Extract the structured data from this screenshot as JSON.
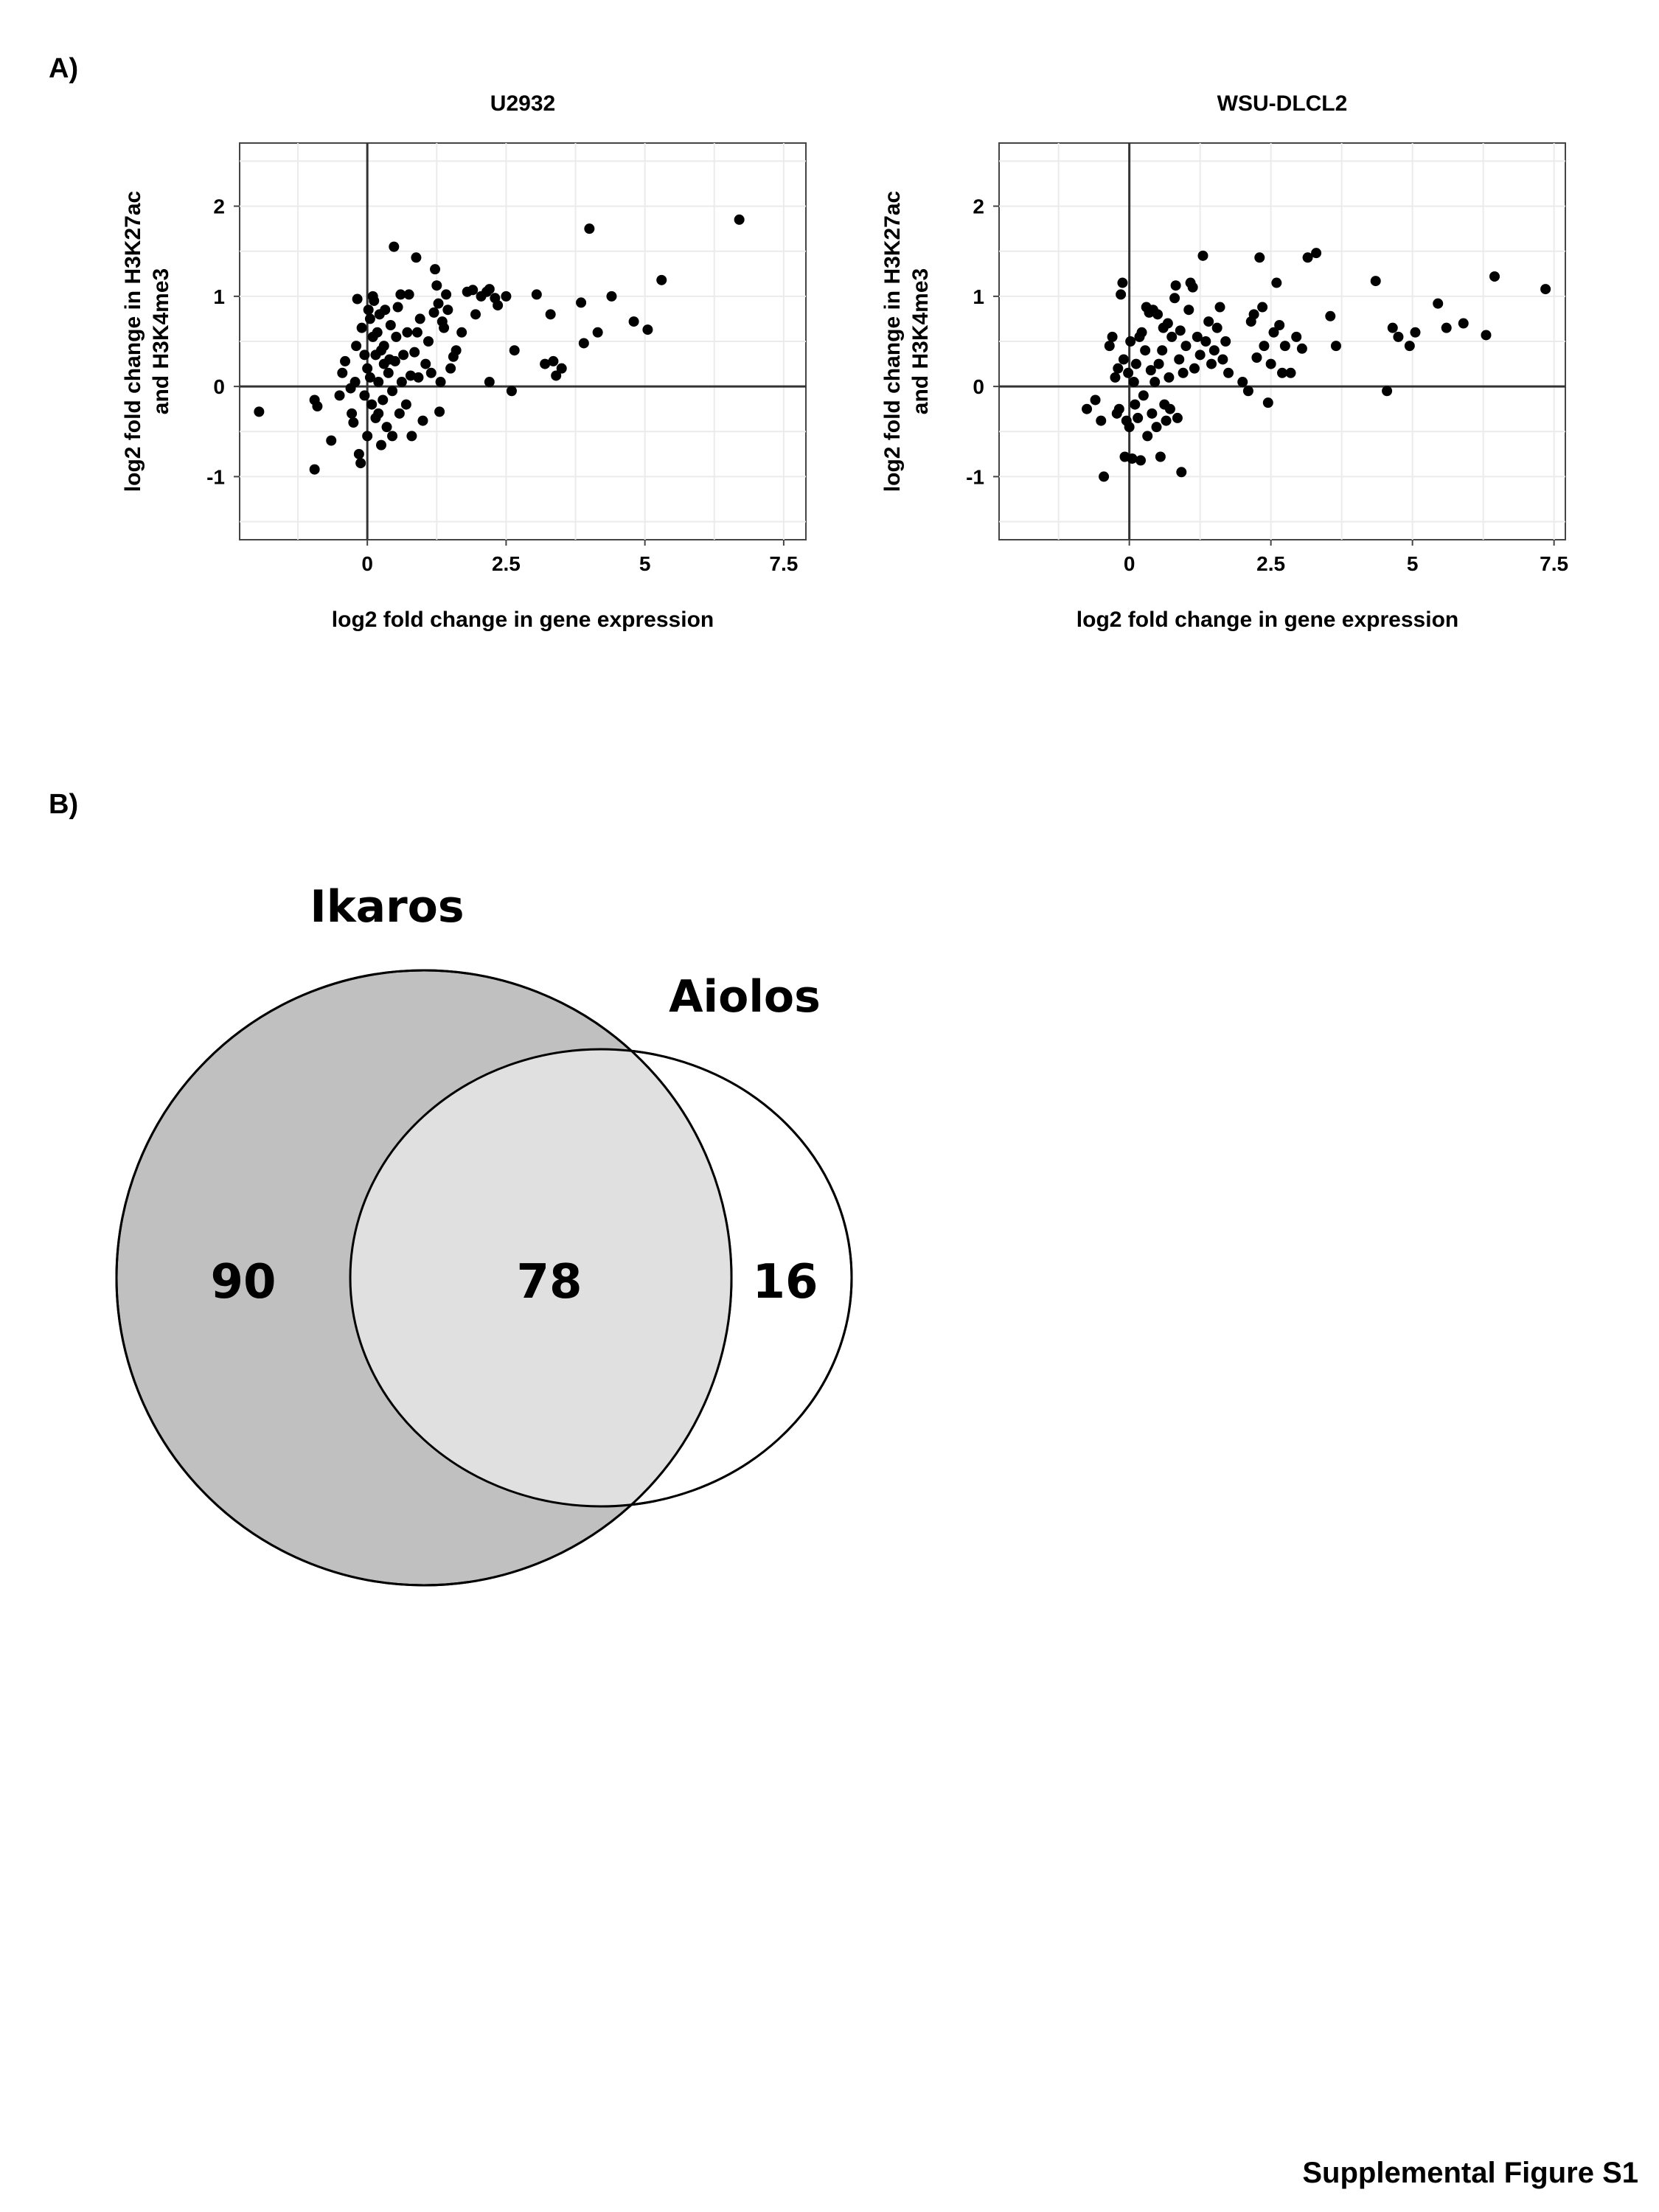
{
  "panels": {
    "a_label": "A)",
    "b_label": "B)"
  },
  "footer": "Supplemental Figure S1",
  "chart_data": [
    {
      "type": "scatter",
      "title": "U2932",
      "xlabel": "log2 fold change in gene expression",
      "ylabel_line1": "log2 fold change in H3K27ac",
      "ylabel_line2": "and H3K4me3",
      "xlim": [
        -2.3,
        7.9
      ],
      "ylim": [
        -1.7,
        2.7
      ],
      "xticks": [
        0,
        2.5,
        5,
        7.5
      ],
      "xtick_labels": [
        "0",
        "2.5",
        "5",
        "7.5"
      ],
      "yticks": [
        -1,
        0,
        1,
        2
      ],
      "ytick_labels": [
        "-1",
        "0",
        "1",
        "2"
      ],
      "grid": true,
      "points": [
        [
          -1.95,
          -0.28
        ],
        [
          -0.95,
          -0.15
        ],
        [
          -0.9,
          -0.22
        ],
        [
          -0.95,
          -0.92
        ],
        [
          -0.65,
          -0.6
        ],
        [
          -0.5,
          -0.1
        ],
        [
          -0.45,
          0.15
        ],
        [
          -0.4,
          0.28
        ],
        [
          -0.3,
          -0.02
        ],
        [
          -0.28,
          -0.3
        ],
        [
          -0.25,
          -0.4
        ],
        [
          -0.22,
          0.05
        ],
        [
          -0.2,
          0.45
        ],
        [
          -0.18,
          0.97
        ],
        [
          -0.15,
          -0.75
        ],
        [
          -0.12,
          -0.85
        ],
        [
          -0.1,
          0.65
        ],
        [
          -0.05,
          0.35
        ],
        [
          -0.05,
          -0.1
        ],
        [
          0.0,
          0.2
        ],
        [
          0.0,
          -0.55
        ],
        [
          0.02,
          0.85
        ],
        [
          0.05,
          0.75
        ],
        [
          0.05,
          0.1
        ],
        [
          0.08,
          -0.2
        ],
        [
          0.1,
          0.55
        ],
        [
          0.1,
          1.0
        ],
        [
          0.12,
          0.95
        ],
        [
          0.15,
          -0.35
        ],
        [
          0.15,
          0.35
        ],
        [
          0.18,
          0.6
        ],
        [
          0.2,
          0.05
        ],
        [
          0.2,
          -0.3
        ],
        [
          0.22,
          0.8
        ],
        [
          0.25,
          0.4
        ],
        [
          0.25,
          -0.65
        ],
        [
          0.28,
          -0.15
        ],
        [
          0.3,
          0.25
        ],
        [
          0.3,
          0.45
        ],
        [
          0.32,
          0.85
        ],
        [
          0.35,
          -0.45
        ],
        [
          0.38,
          0.15
        ],
        [
          0.4,
          0.3
        ],
        [
          0.42,
          0.68
        ],
        [
          0.45,
          -0.05
        ],
        [
          0.45,
          -0.55
        ],
        [
          0.48,
          1.55
        ],
        [
          0.5,
          0.28
        ],
        [
          0.52,
          0.55
        ],
        [
          0.55,
          0.88
        ],
        [
          0.58,
          -0.3
        ],
        [
          0.6,
          1.02
        ],
        [
          0.62,
          0.05
        ],
        [
          0.65,
          0.35
        ],
        [
          0.7,
          -0.2
        ],
        [
          0.72,
          0.6
        ],
        [
          0.75,
          1.02
        ],
        [
          0.78,
          0.12
        ],
        [
          0.8,
          -0.55
        ],
        [
          0.85,
          0.38
        ],
        [
          0.88,
          1.43
        ],
        [
          0.9,
          0.6
        ],
        [
          0.92,
          0.1
        ],
        [
          0.95,
          0.75
        ],
        [
          1.0,
          -0.38
        ],
        [
          1.05,
          0.25
        ],
        [
          1.1,
          0.5
        ],
        [
          1.15,
          0.15
        ],
        [
          1.2,
          0.82
        ],
        [
          1.22,
          1.3
        ],
        [
          1.25,
          1.12
        ],
        [
          1.28,
          0.92
        ],
        [
          1.3,
          -0.28
        ],
        [
          1.32,
          0.05
        ],
        [
          1.35,
          0.72
        ],
        [
          1.38,
          0.65
        ],
        [
          1.42,
          1.02
        ],
        [
          1.45,
          0.85
        ],
        [
          1.5,
          0.2
        ],
        [
          1.55,
          0.33
        ],
        [
          1.6,
          0.4
        ],
        [
          1.7,
          0.6
        ],
        [
          1.8,
          1.05
        ],
        [
          1.9,
          1.07
        ],
        [
          1.95,
          0.8
        ],
        [
          2.05,
          1.0
        ],
        [
          2.15,
          1.05
        ],
        [
          2.2,
          1.08
        ],
        [
          2.3,
          0.98
        ],
        [
          2.35,
          0.9
        ],
        [
          2.2,
          0.05
        ],
        [
          2.6,
          -0.05
        ],
        [
          2.65,
          0.4
        ],
        [
          2.5,
          1.0
        ],
        [
          3.05,
          1.02
        ],
        [
          3.2,
          0.25
        ],
        [
          3.3,
          0.8
        ],
        [
          3.35,
          0.28
        ],
        [
          3.4,
          0.12
        ],
        [
          3.5,
          0.2
        ],
        [
          3.85,
          0.93
        ],
        [
          3.9,
          0.48
        ],
        [
          4.0,
          1.75
        ],
        [
          4.15,
          0.6
        ],
        [
          4.4,
          1.0
        ],
        [
          4.8,
          0.72
        ],
        [
          5.05,
          0.63
        ],
        [
          5.3,
          1.18
        ],
        [
          6.7,
          1.85
        ]
      ]
    },
    {
      "type": "scatter",
      "title": "WSU-DLCL2",
      "xlabel": "log2 fold change in gene expression",
      "ylabel_line1": "log2 fold change in H3K27ac",
      "ylabel_line2": "and H3K4me3",
      "xlim": [
        -2.3,
        7.7
      ],
      "ylim": [
        -1.7,
        2.7
      ],
      "xticks": [
        0,
        2.5,
        5,
        7.5
      ],
      "xtick_labels": [
        "0",
        "2.5",
        "5",
        "7.5"
      ],
      "yticks": [
        -1,
        0,
        1,
        2
      ],
      "ytick_labels": [
        "-1",
        "0",
        "1",
        "2"
      ],
      "grid": true,
      "points": [
        [
          -0.75,
          -0.25
        ],
        [
          -0.6,
          -0.15
        ],
        [
          -0.5,
          -0.38
        ],
        [
          -0.45,
          -1.0
        ],
        [
          -0.35,
          0.45
        ],
        [
          -0.3,
          0.55
        ],
        [
          -0.25,
          0.1
        ],
        [
          -0.22,
          -0.3
        ],
        [
          -0.2,
          0.2
        ],
        [
          -0.18,
          -0.25
        ],
        [
          -0.15,
          1.02
        ],
        [
          -0.12,
          1.15
        ],
        [
          -0.1,
          0.3
        ],
        [
          -0.08,
          -0.78
        ],
        [
          -0.05,
          -0.38
        ],
        [
          -0.02,
          0.15
        ],
        [
          0.0,
          -0.45
        ],
        [
          0.02,
          0.5
        ],
        [
          0.05,
          -0.8
        ],
        [
          0.08,
          0.05
        ],
        [
          0.1,
          -0.2
        ],
        [
          0.12,
          0.25
        ],
        [
          0.15,
          -0.35
        ],
        [
          0.18,
          0.55
        ],
        [
          0.2,
          -0.82
        ],
        [
          0.22,
          0.6
        ],
        [
          0.25,
          -0.1
        ],
        [
          0.28,
          0.4
        ],
        [
          0.3,
          0.88
        ],
        [
          0.32,
          -0.55
        ],
        [
          0.35,
          0.82
        ],
        [
          0.38,
          0.18
        ],
        [
          0.4,
          -0.3
        ],
        [
          0.42,
          0.85
        ],
        [
          0.45,
          0.05
        ],
        [
          0.48,
          -0.45
        ],
        [
          0.5,
          0.8
        ],
        [
          0.52,
          0.25
        ],
        [
          0.55,
          -0.78
        ],
        [
          0.58,
          0.4
        ],
        [
          0.6,
          0.65
        ],
        [
          0.62,
          -0.2
        ],
        [
          0.65,
          -0.38
        ],
        [
          0.68,
          0.7
        ],
        [
          0.7,
          0.1
        ],
        [
          0.72,
          -0.25
        ],
        [
          0.75,
          0.55
        ],
        [
          0.8,
          0.98
        ],
        [
          0.82,
          1.12
        ],
        [
          0.85,
          -0.35
        ],
        [
          0.88,
          0.3
        ],
        [
          0.9,
          0.62
        ],
        [
          0.92,
          -0.95
        ],
        [
          0.95,
          0.15
        ],
        [
          1.0,
          0.45
        ],
        [
          1.05,
          0.85
        ],
        [
          1.08,
          1.15
        ],
        [
          1.12,
          1.1
        ],
        [
          1.15,
          0.2
        ],
        [
          1.2,
          0.55
        ],
        [
          1.25,
          0.35
        ],
        [
          1.3,
          1.45
        ],
        [
          1.35,
          0.5
        ],
        [
          1.4,
          0.72
        ],
        [
          1.45,
          0.25
        ],
        [
          1.5,
          0.4
        ],
        [
          1.55,
          0.65
        ],
        [
          1.6,
          0.88
        ],
        [
          1.65,
          0.3
        ],
        [
          1.7,
          0.5
        ],
        [
          1.75,
          0.15
        ],
        [
          2.0,
          0.05
        ],
        [
          2.1,
          -0.05
        ],
        [
          2.15,
          0.72
        ],
        [
          2.2,
          0.8
        ],
        [
          2.25,
          0.32
        ],
        [
          2.3,
          1.43
        ],
        [
          2.35,
          0.88
        ],
        [
          2.38,
          0.45
        ],
        [
          2.45,
          -0.18
        ],
        [
          2.5,
          0.25
        ],
        [
          2.55,
          0.6
        ],
        [
          2.6,
          1.15
        ],
        [
          2.65,
          0.68
        ],
        [
          2.7,
          0.15
        ],
        [
          2.75,
          0.45
        ],
        [
          2.85,
          0.15
        ],
        [
          2.95,
          0.55
        ],
        [
          3.05,
          0.42
        ],
        [
          3.15,
          1.43
        ],
        [
          3.3,
          1.48
        ],
        [
          3.55,
          0.78
        ],
        [
          3.65,
          0.45
        ],
        [
          4.35,
          1.17
        ],
        [
          4.55,
          -0.05
        ],
        [
          4.65,
          0.65
        ],
        [
          4.75,
          0.55
        ],
        [
          4.95,
          0.45
        ],
        [
          5.05,
          0.6
        ],
        [
          5.45,
          0.92
        ],
        [
          5.6,
          0.65
        ],
        [
          5.9,
          0.7
        ],
        [
          6.3,
          0.57
        ],
        [
          6.45,
          1.22
        ],
        [
          7.35,
          1.08
        ]
      ]
    },
    {
      "type": "venn",
      "sets": [
        "Ikaros",
        "Aiolos"
      ],
      "regions": {
        "Ikaros_only": "90",
        "both": "78",
        "Aiolos_only": "16"
      },
      "colors": {
        "ikaros_fill": "#c0c0c0",
        "overlap_fill": "#e0e0e0",
        "aiolos_fill": "#ffffff",
        "ikaros_edge": "#000000",
        "aiolos_edge": "#000000"
      }
    }
  ]
}
